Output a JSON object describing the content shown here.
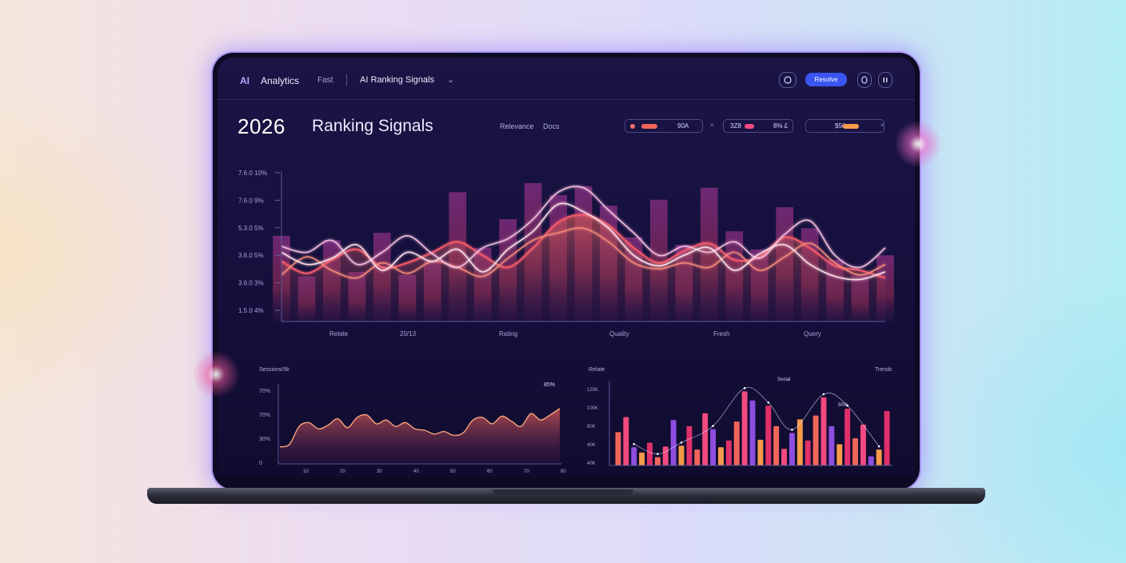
{
  "app": {
    "logo": "AI",
    "name": "Analytics",
    "nav_item": "Fast",
    "section": "AI Ranking Signals",
    "chevron": "⌄",
    "primary_button": "Resolve",
    "icons": [
      "help-circle-icon",
      "user-icon",
      "pause-icon"
    ]
  },
  "page": {
    "year": "2026",
    "title": "Ranking Signals",
    "tabs": [
      "Relevance",
      "Docs"
    ]
  },
  "filters": [
    {
      "value": "90A",
      "bar_color": "#f2665a",
      "dot_color": "#ff6b6b"
    },
    {
      "value": "8% £",
      "label": "3Z8",
      "bar_color": "#f24a7e"
    },
    {
      "value": "",
      "label": "$50",
      "bar_color": "#f79a4a"
    }
  ],
  "colors": {
    "accent": "#3a55f2",
    "coral": "#f2665a",
    "pink": "#f24a7e",
    "magenta": "#e0306a",
    "orange": "#f79a4a",
    "violet": "#8d4ee0"
  },
  "chart_data": [
    {
      "type": "line",
      "title": "",
      "y_tick_labels": [
        "7.6.0 10%",
        "7.6.0 9%",
        "5.3.0 5%",
        "3.6.0 5%",
        "3.6.0 3%",
        "1.5.0 4%"
      ],
      "x_tick_labels": [
        "Relate",
        "20/13",
        "Rating",
        "Quality",
        "Fresh",
        "Query"
      ],
      "x": [
        0,
        1,
        2,
        3,
        4,
        5,
        6,
        7,
        8,
        9,
        10,
        11,
        12,
        13,
        14,
        15,
        16,
        17,
        18,
        19,
        20,
        21,
        22,
        23,
        24
      ],
      "series": [
        {
          "color": "#f25a6a",
          "values": [
            4.0,
            3.2,
            4.1,
            4.8,
            3.6,
            3.9,
            4.6,
            5.3,
            4.4,
            3.6,
            4.9,
            6.6,
            7.1,
            6.4,
            4.9,
            3.9,
            4.7,
            5.2,
            4.1,
            4.3,
            5.6,
            4.9,
            3.7,
            3.4,
            2.9
          ]
        },
        {
          "color": "#f58a7a",
          "values": [
            3.1,
            4.3,
            3.4,
            2.9,
            3.9,
            3.2,
            4.0,
            3.6,
            3.0,
            4.2,
            5.4,
            5.9,
            6.2,
            5.3,
            3.9,
            3.5,
            3.9,
            3.6,
            4.6,
            3.4,
            4.3,
            5.2,
            3.9,
            3.1,
            3.8
          ]
        },
        {
          "color": "#f6c0e0",
          "values": [
            5.0,
            4.6,
            5.4,
            3.8,
            4.6,
            5.7,
            4.5,
            3.6,
            4.9,
            5.5,
            6.8,
            8.6,
            8.9,
            7.4,
            5.9,
            4.4,
            5.0,
            4.6,
            5.3,
            4.2,
            5.8,
            6.7,
            4.4,
            3.6,
            4.9
          ]
        },
        {
          "color": "#ffe0ea",
          "values": [
            4.6,
            3.8,
            4.2,
            5.1,
            3.4,
            4.6,
            4.0,
            4.8,
            3.3,
            4.8,
            6.0,
            7.8,
            7.3,
            6.2,
            4.4,
            3.7,
            4.4,
            4.9,
            3.4,
            4.5,
            5.1,
            3.8,
            3.0,
            2.8,
            3.3
          ]
        }
      ],
      "background_bars": [
        5.7,
        3.0,
        5.4,
        3.3,
        5.9,
        3.1,
        4.0,
        8.6,
        4.9,
        6.8,
        9.2,
        8.4,
        9.0,
        7.7,
        5.6,
        8.1,
        5.1,
        8.9,
        6.0,
        4.8,
        7.6,
        6.2,
        4.1,
        3.1,
        4.4
      ]
    },
    {
      "type": "area",
      "title": "Sessions/5k",
      "y_tick_labels": [
        "70%",
        "70%",
        "30%",
        "0"
      ],
      "x_tick_labels": [
        "10",
        "20",
        "30",
        "40",
        "50",
        "60",
        "70",
        "80"
      ],
      "annotation": "85%",
      "color": "#f2665a",
      "x": [
        0,
        1,
        2,
        3,
        4,
        5,
        6,
        7,
        8,
        9,
        10,
        11,
        12,
        13,
        14,
        15,
        16,
        17,
        18,
        19,
        20,
        21,
        22,
        23,
        24,
        25,
        26,
        27,
        28,
        29
      ],
      "values": [
        12,
        14,
        28,
        31,
        26,
        29,
        34,
        27,
        35,
        37,
        30,
        33,
        28,
        31,
        26,
        25,
        22,
        24,
        21,
        23,
        33,
        35,
        30,
        36,
        32,
        28,
        38,
        33,
        37,
        42
      ],
      "ylim": [
        0,
        60
      ]
    },
    {
      "type": "bar",
      "title": "Relate",
      "right_label": "Trends",
      "y_tick_labels": [
        "120K",
        "100K",
        "80K",
        "40K",
        "40K"
      ],
      "annotations": [
        "Social",
        "50%"
      ],
      "colors": [
        "#f2665a",
        "#f24a7e",
        "#8d4ee0",
        "#f79a4a",
        "#e0306a"
      ],
      "values": [
        44,
        64,
        24,
        17,
        30,
        11,
        25,
        60,
        26,
        52,
        21,
        69,
        48,
        24,
        33,
        58,
        98,
        86,
        34,
        79,
        52,
        22,
        43,
        61,
        33,
        66,
        90,
        52,
        28,
        75,
        36,
        54,
        12,
        21,
        72
      ],
      "ylim": [
        0,
        110
      ]
    }
  ]
}
